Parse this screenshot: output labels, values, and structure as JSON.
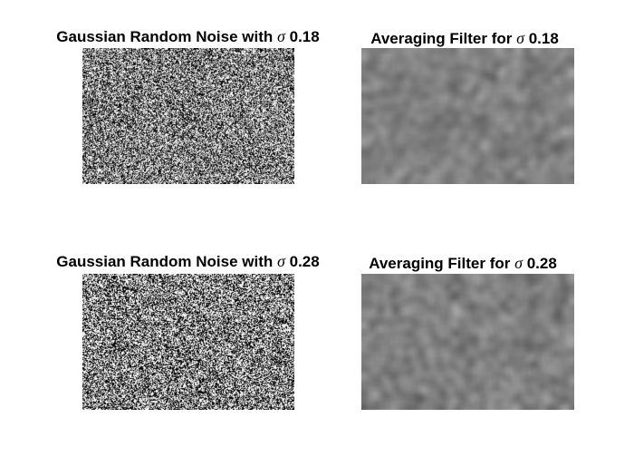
{
  "figure": {
    "background": "#ffffff",
    "panels": [
      {
        "id": "noise-018",
        "kind": "noise",
        "title_prefix": "Gaussian Random Noise with",
        "sigma_symbol": "σ",
        "sigma_value": "0.18",
        "sigma": 0.18
      },
      {
        "id": "avg-018",
        "kind": "averaged",
        "title_prefix": "Averaging Filter for",
        "sigma_symbol": "σ",
        "sigma_value": "0.18",
        "sigma": 0.18
      },
      {
        "id": "noise-028",
        "kind": "noise",
        "title_prefix": "Gaussian Random Noise with",
        "sigma_symbol": "σ",
        "sigma_value": "0.28",
        "sigma": 0.28
      },
      {
        "id": "avg-028",
        "kind": "averaged",
        "title_prefix": "Averaging Filter for",
        "sigma_symbol": "σ",
        "sigma_value": "0.28",
        "sigma": 0.28
      }
    ]
  }
}
